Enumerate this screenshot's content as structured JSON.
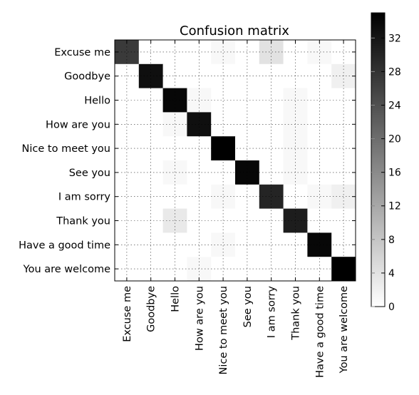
{
  "chart_data": {
    "type": "heatmap",
    "title": "Confusion matrix",
    "row_labels": [
      "Excuse me",
      "Goodbye",
      "Hello",
      "How are you",
      "Nice to meet you",
      "See you",
      "I am sorry",
      "Thank you",
      "Have a good time",
      "You are welcome"
    ],
    "col_labels": [
      "Excuse me",
      "Goodbye",
      "Hello",
      "How are you",
      "Nice to meet you",
      "See you",
      "I am sorry",
      "Thank you",
      "Have a good time",
      "You are welcome"
    ],
    "values": [
      [
        27,
        0,
        0,
        0,
        1,
        0,
        4,
        0,
        1,
        0
      ],
      [
        0,
        33,
        0,
        0,
        0,
        0,
        0,
        0,
        0,
        2
      ],
      [
        0,
        0,
        34,
        1,
        0,
        0,
        0,
        1,
        0,
        0
      ],
      [
        0,
        0,
        1,
        33,
        0,
        0,
        0,
        1,
        0,
        0
      ],
      [
        0,
        0,
        0,
        0,
        35,
        0,
        0,
        1,
        0,
        0
      ],
      [
        0,
        0,
        1,
        0,
        0,
        34,
        0,
        1,
        0,
        0
      ],
      [
        0,
        0,
        0,
        0,
        1,
        0,
        30,
        0,
        1,
        2
      ],
      [
        0,
        0,
        3,
        0,
        0,
        0,
        0,
        31,
        0,
        0
      ],
      [
        0,
        0,
        0,
        0,
        1,
        0,
        0,
        0,
        34,
        0
      ],
      [
        0,
        0,
        0,
        1,
        0,
        0,
        0,
        0,
        0,
        35
      ]
    ],
    "grid": true,
    "colorbar": {
      "range": [
        0,
        35
      ],
      "ticks": [
        0,
        4,
        8,
        12,
        16,
        20,
        24,
        28,
        32
      ],
      "colormap": [
        "#ffffff",
        "#000000"
      ]
    }
  }
}
